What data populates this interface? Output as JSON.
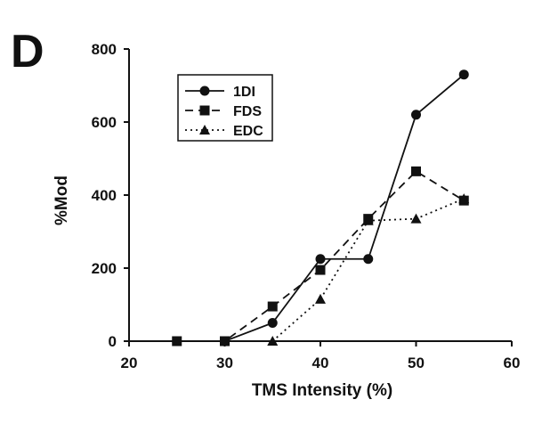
{
  "chart_data": {
    "type": "line",
    "panel_label": "D",
    "xlabel": "TMS Intensity (%)",
    "ylabel": "%Mod",
    "xlim": [
      20,
      60
    ],
    "ylim": [
      0,
      800
    ],
    "xticks": [
      20,
      30,
      40,
      50,
      60
    ],
    "yticks": [
      0,
      200,
      400,
      600,
      800
    ],
    "grid": false,
    "legend_position": "top-left",
    "series": [
      {
        "name": "1DI",
        "line_style": "solid",
        "marker": "circle",
        "x": [
          25,
          30,
          35,
          40,
          45,
          50,
          55
        ],
        "y": [
          0,
          0,
          50,
          225,
          225,
          620,
          730
        ]
      },
      {
        "name": "FDS",
        "line_style": "dashed",
        "marker": "square",
        "x": [
          25,
          30,
          35,
          40,
          45,
          50,
          55
        ],
        "y": [
          0,
          0,
          95,
          195,
          335,
          465,
          385
        ]
      },
      {
        "name": "EDC",
        "line_style": "dotted",
        "marker": "triangle",
        "x": [
          35,
          40,
          45,
          50,
          55
        ],
        "y": [
          0,
          115,
          330,
          335,
          390
        ]
      }
    ]
  }
}
